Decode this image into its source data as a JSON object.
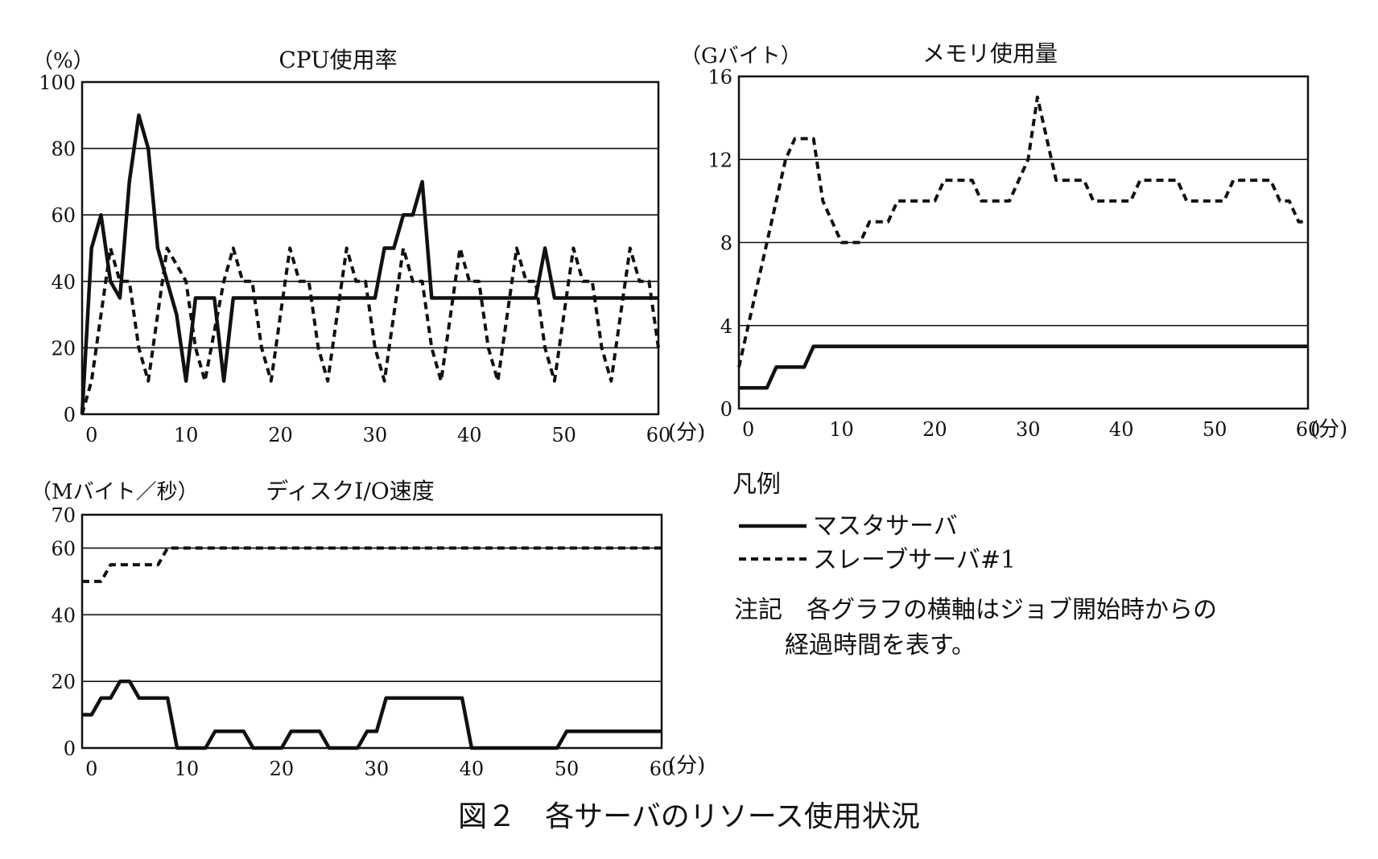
{
  "chart_data": [
    {
      "type": "line",
      "title": "CPU使用率",
      "ylabel": "（%）",
      "xlabel": "(分)",
      "xlim": [
        -1,
        60
      ],
      "ylim": [
        0,
        100
      ],
      "xticks": [
        0,
        10,
        20,
        30,
        40,
        50,
        60
      ],
      "yticks": [
        0,
        20,
        40,
        60,
        80,
        100
      ],
      "grid": true,
      "series": [
        {
          "name": "マスタサーバ",
          "points": [
            [
              -1,
              0
            ],
            [
              0,
              50
            ],
            [
              1,
              60
            ],
            [
              2,
              40
            ],
            [
              3,
              35
            ],
            [
              4,
              70
            ],
            [
              5,
              90
            ],
            [
              6,
              80
            ],
            [
              7,
              50
            ],
            [
              8,
              40
            ],
            [
              9,
              30
            ],
            [
              10,
              10
            ],
            [
              11,
              35
            ],
            [
              12,
              35
            ],
            [
              13,
              35
            ],
            [
              14,
              10
            ],
            [
              15,
              35
            ],
            [
              20,
              35
            ],
            [
              25,
              35
            ],
            [
              30,
              35
            ],
            [
              31,
              50
            ],
            [
              32,
              50
            ],
            [
              33,
              60
            ],
            [
              34,
              60
            ],
            [
              35,
              70
            ],
            [
              36,
              35
            ],
            [
              40,
              35
            ],
            [
              45,
              35
            ],
            [
              47,
              35
            ],
            [
              48,
              50
            ],
            [
              49,
              35
            ],
            [
              55,
              35
            ],
            [
              60,
              35
            ]
          ]
        },
        {
          "name": "スレーブサーバ#1",
          "points": [
            [
              -1,
              0
            ],
            [
              0,
              10
            ],
            [
              1,
              30
            ],
            [
              2,
              50
            ],
            [
              3,
              40
            ],
            [
              4,
              40
            ],
            [
              5,
              20
            ],
            [
              6,
              10
            ],
            [
              7,
              30
            ],
            [
              8,
              50
            ],
            [
              9,
              45
            ],
            [
              10,
              40
            ],
            [
              11,
              20
            ],
            [
              12,
              10
            ],
            [
              13,
              25
            ],
            [
              14,
              40
            ],
            [
              15,
              50
            ],
            [
              16,
              40
            ],
            [
              17,
              40
            ],
            [
              18,
              20
            ],
            [
              19,
              10
            ],
            [
              20,
              30
            ],
            [
              21,
              50
            ],
            [
              22,
              40
            ],
            [
              23,
              40
            ],
            [
              24,
              20
            ],
            [
              25,
              10
            ],
            [
              26,
              30
            ],
            [
              27,
              50
            ],
            [
              28,
              40
            ],
            [
              29,
              40
            ],
            [
              30,
              20
            ],
            [
              31,
              10
            ],
            [
              32,
              30
            ],
            [
              33,
              50
            ],
            [
              34,
              40
            ],
            [
              35,
              40
            ],
            [
              36,
              20
            ],
            [
              37,
              10
            ],
            [
              38,
              30
            ],
            [
              39,
              50
            ],
            [
              40,
              40
            ],
            [
              41,
              40
            ],
            [
              42,
              20
            ],
            [
              43,
              10
            ],
            [
              44,
              30
            ],
            [
              45,
              50
            ],
            [
              46,
              40
            ],
            [
              47,
              40
            ],
            [
              48,
              20
            ],
            [
              49,
              10
            ],
            [
              50,
              30
            ],
            [
              51,
              50
            ],
            [
              52,
              40
            ],
            [
              53,
              40
            ],
            [
              54,
              20
            ],
            [
              55,
              10
            ],
            [
              56,
              30
            ],
            [
              57,
              50
            ],
            [
              58,
              40
            ],
            [
              59,
              40
            ],
            [
              60,
              20
            ]
          ]
        }
      ]
    },
    {
      "type": "line",
      "title": "メモリ使用量",
      "ylabel": "（Gバイト）",
      "xlabel": "(分)",
      "xlim": [
        -1,
        60
      ],
      "ylim": [
        0,
        16
      ],
      "xticks": [
        0,
        10,
        20,
        30,
        40,
        50,
        60
      ],
      "yticks": [
        0,
        4,
        8,
        12,
        16
      ],
      "grid": true,
      "series": [
        {
          "name": "マスタサーバ",
          "points": [
            [
              -1,
              1
            ],
            [
              0,
              1
            ],
            [
              1,
              1
            ],
            [
              2,
              1
            ],
            [
              3,
              2
            ],
            [
              4,
              2
            ],
            [
              5,
              2
            ],
            [
              6,
              2
            ],
            [
              7,
              3
            ],
            [
              10,
              3
            ],
            [
              20,
              3
            ],
            [
              30,
              3
            ],
            [
              40,
              3
            ],
            [
              50,
              3
            ],
            [
              60,
              3
            ]
          ]
        },
        {
          "name": "スレーブサーバ#1",
          "points": [
            [
              -1,
              2
            ],
            [
              0,
              4
            ],
            [
              1,
              6
            ],
            [
              2,
              8
            ],
            [
              3,
              10
            ],
            [
              4,
              12
            ],
            [
              5,
              13
            ],
            [
              6,
              13
            ],
            [
              7,
              13
            ],
            [
              8,
              10
            ],
            [
              9,
              9
            ],
            [
              10,
              8
            ],
            [
              11,
              8
            ],
            [
              12,
              8
            ],
            [
              13,
              9
            ],
            [
              14,
              9
            ],
            [
              15,
              9
            ],
            [
              16,
              10
            ],
            [
              17,
              10
            ],
            [
              18,
              10
            ],
            [
              19,
              10
            ],
            [
              20,
              10
            ],
            [
              21,
              11
            ],
            [
              22,
              11
            ],
            [
              23,
              11
            ],
            [
              24,
              11
            ],
            [
              25,
              10
            ],
            [
              26,
              10
            ],
            [
              27,
              10
            ],
            [
              28,
              10
            ],
            [
              29,
              11
            ],
            [
              30,
              12
            ],
            [
              31,
              15
            ],
            [
              32,
              13
            ],
            [
              33,
              11
            ],
            [
              34,
              11
            ],
            [
              35,
              11
            ],
            [
              36,
              11
            ],
            [
              37,
              10
            ],
            [
              38,
              10
            ],
            [
              39,
              10
            ],
            [
              40,
              10
            ],
            [
              41,
              10
            ],
            [
              42,
              11
            ],
            [
              43,
              11
            ],
            [
              44,
              11
            ],
            [
              45,
              11
            ],
            [
              46,
              11
            ],
            [
              47,
              10
            ],
            [
              48,
              10
            ],
            [
              49,
              10
            ],
            [
              50,
              10
            ],
            [
              51,
              10
            ],
            [
              52,
              11
            ],
            [
              53,
              11
            ],
            [
              54,
              11
            ],
            [
              55,
              11
            ],
            [
              56,
              11
            ],
            [
              57,
              10
            ],
            [
              58,
              10
            ],
            [
              59,
              9
            ],
            [
              60,
              9
            ]
          ]
        }
      ]
    },
    {
      "type": "line",
      "title": "ディスクI/O速度",
      "ylabel": "（Mバイト／秒）",
      "xlabel": "(分)",
      "xlim": [
        -1,
        60
      ],
      "ylim": [
        0,
        70
      ],
      "xticks": [
        0,
        10,
        20,
        30,
        40,
        50,
        60
      ],
      "yticks": [
        0,
        20,
        40,
        60,
        70
      ],
      "grid": true,
      "series": [
        {
          "name": "マスタサーバ",
          "points": [
            [
              -1,
              10
            ],
            [
              0,
              10
            ],
            [
              1,
              15
            ],
            [
              2,
              15
            ],
            [
              3,
              20
            ],
            [
              4,
              20
            ],
            [
              5,
              15
            ],
            [
              6,
              15
            ],
            [
              7,
              15
            ],
            [
              8,
              15
            ],
            [
              9,
              0
            ],
            [
              10,
              0
            ],
            [
              11,
              0
            ],
            [
              12,
              0
            ],
            [
              13,
              5
            ],
            [
              14,
              5
            ],
            [
              15,
              5
            ],
            [
              16,
              5
            ],
            [
              17,
              0
            ],
            [
              18,
              0
            ],
            [
              19,
              0
            ],
            [
              20,
              0
            ],
            [
              21,
              5
            ],
            [
              22,
              5
            ],
            [
              23,
              5
            ],
            [
              24,
              5
            ],
            [
              25,
              0
            ],
            [
              26,
              0
            ],
            [
              27,
              0
            ],
            [
              28,
              0
            ],
            [
              29,
              5
            ],
            [
              30,
              5
            ],
            [
              31,
              15
            ],
            [
              35,
              15
            ],
            [
              39,
              15
            ],
            [
              40,
              0
            ],
            [
              45,
              0
            ],
            [
              49,
              0
            ],
            [
              50,
              5
            ],
            [
              55,
              5
            ],
            [
              60,
              5
            ]
          ]
        },
        {
          "name": "スレーブサーバ#1",
          "points": [
            [
              -1,
              50
            ],
            [
              0,
              50
            ],
            [
              1,
              50
            ],
            [
              2,
              55
            ],
            [
              3,
              55
            ],
            [
              4,
              55
            ],
            [
              5,
              55
            ],
            [
              6,
              55
            ],
            [
              7,
              55
            ],
            [
              8,
              60
            ],
            [
              10,
              60
            ],
            [
              20,
              60
            ],
            [
              30,
              60
            ],
            [
              40,
              60
            ],
            [
              50,
              60
            ],
            [
              60,
              60
            ]
          ]
        }
      ]
    }
  ],
  "legend": {
    "title": "凡例",
    "items": [
      {
        "label": "マスタサーバ",
        "style": "solid"
      },
      {
        "label": "スレーブサーバ#1",
        "style": "dashed"
      }
    ]
  },
  "note": {
    "line1": "注記　各グラフの横軸はジョブ開始時からの",
    "line2": "経過時間を表す。"
  },
  "caption": "図２　各サーバのリソース使用状況"
}
